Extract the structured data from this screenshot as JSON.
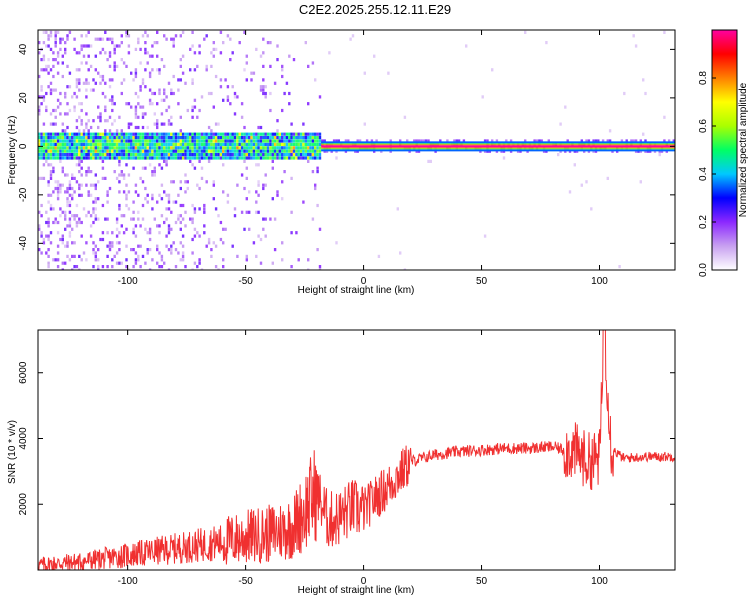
{
  "title": "C2E2.2025.255.12.11.E29",
  "chart_data": [
    {
      "type": "heatmap",
      "title": "C2E2.2025.255.12.11.E29",
      "xlabel": "Height of straight line (km)",
      "ylabel": "Frequency (Hz)",
      "xlim": [
        -138,
        132
      ],
      "ylim": [
        -51,
        48
      ],
      "x_ticks": [
        -100,
        -50,
        0,
        50,
        100
      ],
      "x_tick_labels": [
        "-100",
        "-50",
        "0",
        "50",
        "100"
      ],
      "y_ticks": [
        -40,
        -20,
        0,
        20,
        40
      ],
      "y_tick_labels": [
        "-40",
        "-20",
        "0",
        "20",
        "40"
      ],
      "colorbar": {
        "label": "Normalized spectral amplitude",
        "range": [
          0,
          1
        ],
        "ticks": [
          0.0,
          0.2,
          0.4,
          0.6,
          0.8
        ],
        "tick_labels": [
          "0.0",
          "0.2",
          "0.4",
          "0.6",
          "0.8"
        ],
        "colors": [
          "#ffffff",
          "#c8a0f0",
          "#8c28ff",
          "#0000ff",
          "#00c8ff",
          "#00ff64",
          "#aaff00",
          "#ffff00",
          "#ff8000",
          "#ff0000",
          "#ff00a0"
        ]
      },
      "features": {
        "dc_line_start_x": -18,
        "dc_line_end_x": 132,
        "dc_line_value": 1.0,
        "central_band_half_width_hz": 6
      }
    },
    {
      "type": "line",
      "xlabel": "Height of straight line (km)",
      "ylabel": "SNR (10 * v/v)",
      "xlim": [
        -138,
        132
      ],
      "ylim": [
        0,
        7300
      ],
      "x_ticks": [
        -100,
        -50,
        0,
        50,
        100
      ],
      "x_tick_labels": [
        "-100",
        "-50",
        "0",
        "50",
        "100"
      ],
      "y_ticks": [
        2000,
        4000,
        6000
      ],
      "y_tick_labels": [
        "2000",
        "4000",
        "6000"
      ],
      "line_color": "#f03030",
      "series": [
        {
          "x": [
            -138,
            -130,
            -120,
            -110,
            -100,
            -90,
            -80,
            -70,
            -60,
            -50,
            -40,
            -30,
            -25,
            -20,
            -15,
            -10,
            -5,
            0,
            5,
            10,
            15,
            20,
            25,
            30,
            40,
            50,
            60,
            70,
            80,
            85,
            90,
            95,
            100,
            102,
            105,
            110,
            120,
            132
          ],
          "y": [
            150,
            200,
            250,
            350,
            450,
            550,
            650,
            750,
            850,
            1000,
            1100,
            1300,
            1800,
            2400,
            1500,
            1600,
            1900,
            1800,
            2200,
            2500,
            2900,
            3300,
            3400,
            3500,
            3600,
            3650,
            3700,
            3700,
            3750,
            3650,
            3600,
            3300,
            3400,
            7300,
            3700,
            3400,
            3450,
            3450
          ]
        }
      ]
    }
  ]
}
